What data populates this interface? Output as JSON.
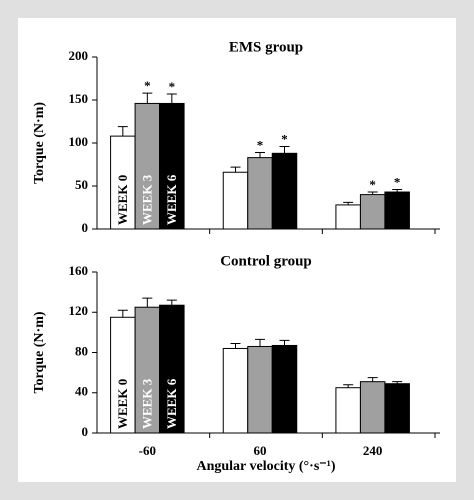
{
  "chart_data": [
    {
      "type": "bar",
      "title": "EMS group",
      "ylabel": "Torque (N·m)",
      "categories": [
        null,
        null,
        null
      ],
      "series": [
        {
          "name": "WEEK 0",
          "color": "#ffffff",
          "values": [
            108,
            66,
            28
          ],
          "errors": [
            11,
            6,
            3
          ]
        },
        {
          "name": "WEEK 3",
          "color": "#a0a0a0",
          "values": [
            146,
            83,
            40
          ],
          "errors": [
            12,
            6,
            3
          ],
          "annotation": "*"
        },
        {
          "name": "WEEK 6",
          "color": "#000000",
          "values": [
            146,
            88,
            43
          ],
          "errors": [
            11,
            8,
            3
          ],
          "annotation": "*"
        }
      ],
      "ylim": [
        0,
        200
      ],
      "yticks": [
        0,
        50,
        100,
        150,
        200
      ]
    },
    {
      "type": "bar",
      "title": "Control group",
      "ylabel": "Torque (N·m)",
      "xlabel": "Angular velocity (°·s⁻¹)",
      "categories": [
        "-60",
        "60",
        "240"
      ],
      "series": [
        {
          "name": "WEEK 0",
          "color": "#ffffff",
          "values": [
            115,
            84,
            45
          ],
          "errors": [
            7,
            5,
            3
          ]
        },
        {
          "name": "WEEK 3",
          "color": "#a0a0a0",
          "values": [
            125,
            86,
            51
          ],
          "errors": [
            9,
            7,
            4
          ]
        },
        {
          "name": "WEEK 6",
          "color": "#000000",
          "values": [
            127,
            87,
            49
          ],
          "errors": [
            5,
            5,
            2
          ]
        }
      ],
      "ylim": [
        0,
        160
      ],
      "yticks": [
        0,
        40,
        80,
        120,
        160
      ]
    }
  ]
}
